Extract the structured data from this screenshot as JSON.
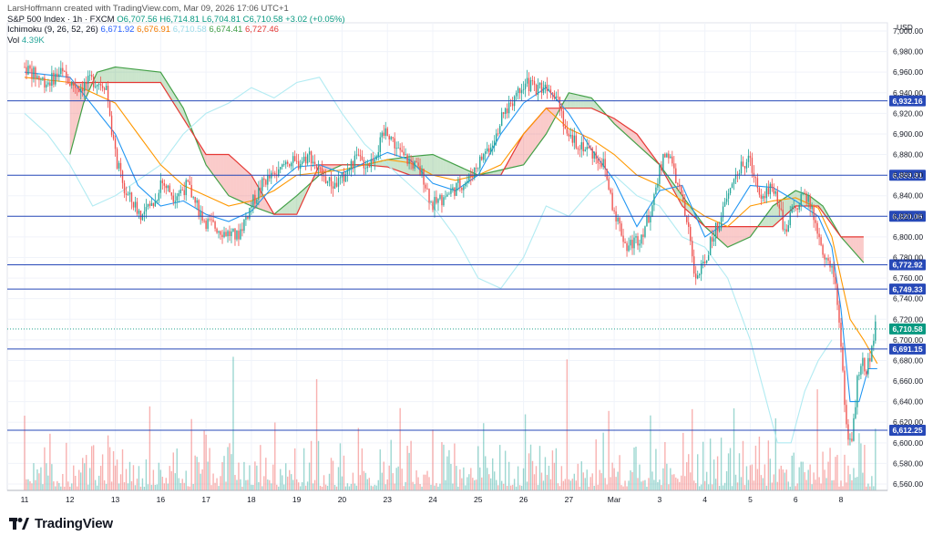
{
  "header": {
    "author_line": "LarsHoffmann created with TradingView.com, Mar 09, 2026 17:06 UTC+1",
    "symbol_line": {
      "symbol": "S&P 500 Index · 1h · FXCM",
      "open": "O6,707.56",
      "high": "H6,714.81",
      "low": "L6,704.81",
      "close": "C6,710.58",
      "change": "+3.02 (+0.05%)"
    },
    "ichimoku_line": {
      "label": "Ichimoku (9, 26, 52, 26)",
      "v1": "6,671.92",
      "v2": "6,676.91",
      "v3": "6,710.58",
      "v4": "6,674.41",
      "v5": "6,727.46"
    },
    "volume_line": {
      "label": "Vol",
      "value": "4.39K"
    }
  },
  "currency": "USD",
  "footer": {
    "brand": "TradingView"
  },
  "colors": {
    "up": "#26a69a",
    "down": "#ef5350",
    "tenkan": "#2196f3",
    "kijun": "#ff9800",
    "chikou": "#b2ebf2",
    "span_a": "#43a047",
    "span_b": "#e53935",
    "level_line": "#2749b8",
    "last_price": "#089981",
    "grid": "#f0f3fa"
  },
  "chart_data": {
    "type": "candlestick",
    "title": "",
    "ylim": [
      6560,
      7000
    ],
    "y_ticks": [
      "6,560.00",
      "6,580.00",
      "6,600.00",
      "6,620.00",
      "6,640.00",
      "6,660.00",
      "6,680.00",
      "6,700.00",
      "6,720.00",
      "6,740.00",
      "6,760.00",
      "6,780.00",
      "6,800.00",
      "6,820.00",
      "6,840.00",
      "6,860.00",
      "6,880.00",
      "6,900.00",
      "6,920.00",
      "6,940.00",
      "6,960.00",
      "6,980.00",
      "7,000.00"
    ],
    "x_ticks": [
      "11",
      "12",
      "13",
      "16",
      "17",
      "18",
      "19",
      "20",
      "23",
      "24",
      "25",
      "26",
      "27",
      "Mar",
      "3",
      "4",
      "5",
      "6",
      "8"
    ],
    "last_price": {
      "value": 6710.58,
      "label": "6,710.58"
    },
    "horizontal_levels": [
      {
        "value": 6932.16,
        "label": "6,932.16"
      },
      {
        "value": 6859.91,
        "label": "6,859.91"
      },
      {
        "value": 6820.06,
        "label": "6,820.06"
      },
      {
        "value": 6772.92,
        "label": "6,772.92"
      },
      {
        "value": 6749.33,
        "label": "6,749.33"
      },
      {
        "value": 6691.15,
        "label": "6,691.15"
      },
      {
        "value": 6612.25,
        "label": "6,612.25"
      }
    ],
    "price_path": [
      [
        0,
        6965
      ],
      [
        0.3,
        6955
      ],
      [
        0.5,
        6950
      ],
      [
        0.8,
        6960
      ],
      [
        1.0,
        6950
      ],
      [
        1.2,
        6945
      ],
      [
        1.5,
        6952
      ],
      [
        1.8,
        6948
      ],
      [
        2.0,
        6880
      ],
      [
        2.2,
        6845
      ],
      [
        2.6,
        6820
      ],
      [
        2.9,
        6835
      ],
      [
        3.0,
        6855
      ],
      [
        3.3,
        6840
      ],
      [
        3.6,
        6850
      ],
      [
        3.8,
        6830
      ],
      [
        4.0,
        6815
      ],
      [
        4.4,
        6805
      ],
      [
        4.7,
        6800
      ],
      [
        5.0,
        6830
      ],
      [
        5.3,
        6855
      ],
      [
        5.6,
        6860
      ],
      [
        5.8,
        6875
      ],
      [
        6.0,
        6870
      ],
      [
        6.3,
        6880
      ],
      [
        6.6,
        6858
      ],
      [
        6.8,
        6850
      ],
      [
        7.0,
        6855
      ],
      [
        7.3,
        6875
      ],
      [
        7.6,
        6870
      ],
      [
        7.8,
        6885
      ],
      [
        8.0,
        6905
      ],
      [
        8.3,
        6880
      ],
      [
        8.6,
        6870
      ],
      [
        8.8,
        6860
      ],
      [
        9.0,
        6830
      ],
      [
        9.3,
        6840
      ],
      [
        9.6,
        6850
      ],
      [
        9.8,
        6855
      ],
      [
        10.0,
        6870
      ],
      [
        10.3,
        6890
      ],
      [
        10.6,
        6920
      ],
      [
        10.8,
        6935
      ],
      [
        11.0,
        6950
      ],
      [
        11.3,
        6945
      ],
      [
        11.6,
        6948
      ],
      [
        11.8,
        6935
      ],
      [
        12.0,
        6895
      ],
      [
        12.3,
        6890
      ],
      [
        12.6,
        6880
      ],
      [
        12.8,
        6870
      ],
      [
        13.0,
        6830
      ],
      [
        13.3,
        6790
      ],
      [
        13.6,
        6800
      ],
      [
        13.8,
        6820
      ],
      [
        14.0,
        6860
      ],
      [
        14.2,
        6885
      ],
      [
        14.5,
        6840
      ],
      [
        14.7,
        6800
      ],
      [
        14.8,
        6760
      ],
      [
        15.0,
        6770
      ],
      [
        15.2,
        6800
      ],
      [
        15.4,
        6820
      ],
      [
        15.7,
        6860
      ],
      [
        16.0,
        6875
      ],
      [
        16.3,
        6840
      ],
      [
        16.5,
        6850
      ],
      [
        16.7,
        6830
      ],
      [
        16.8,
        6800
      ],
      [
        17.0,
        6830
      ],
      [
        17.3,
        6840
      ],
      [
        17.5,
        6810
      ],
      [
        17.7,
        6780
      ],
      [
        17.9,
        6760
      ],
      [
        18.0,
        6720
      ],
      [
        18.1,
        6650
      ],
      [
        18.2,
        6600
      ],
      [
        18.3,
        6610
      ],
      [
        18.4,
        6660
      ],
      [
        18.5,
        6680
      ],
      [
        18.6,
        6670
      ],
      [
        18.7,
        6690
      ],
      [
        18.8,
        6711
      ]
    ],
    "tenkan_path": [
      [
        0,
        6960
      ],
      [
        1.0,
        6955
      ],
      [
        2.0,
        6900
      ],
      [
        2.5,
        6850
      ],
      [
        3.0,
        6830
      ],
      [
        3.5,
        6835
      ],
      [
        4.0,
        6822
      ],
      [
        4.5,
        6815
      ],
      [
        5.0,
        6825
      ],
      [
        5.5,
        6850
      ],
      [
        6.0,
        6868
      ],
      [
        6.5,
        6870
      ],
      [
        7.0,
        6862
      ],
      [
        7.5,
        6872
      ],
      [
        8.0,
        6882
      ],
      [
        8.5,
        6875
      ],
      [
        9.0,
        6852
      ],
      [
        9.5,
        6845
      ],
      [
        10.0,
        6860
      ],
      [
        10.5,
        6900
      ],
      [
        11.0,
        6930
      ],
      [
        11.5,
        6945
      ],
      [
        12.0,
        6920
      ],
      [
        12.5,
        6885
      ],
      [
        13.0,
        6855
      ],
      [
        13.5,
        6810
      ],
      [
        14.0,
        6845
      ],
      [
        14.5,
        6850
      ],
      [
        15.0,
        6800
      ],
      [
        15.5,
        6815
      ],
      [
        16.0,
        6850
      ],
      [
        16.5,
        6848
      ],
      [
        17.0,
        6835
      ],
      [
        17.5,
        6820
      ],
      [
        17.8,
        6790
      ],
      [
        18.0,
        6730
      ],
      [
        18.2,
        6640
      ],
      [
        18.4,
        6640
      ],
      [
        18.6,
        6672
      ],
      [
        18.8,
        6672
      ]
    ],
    "kijun_path": [
      [
        0,
        6955
      ],
      [
        1.0,
        6950
      ],
      [
        2.0,
        6930
      ],
      [
        2.5,
        6900
      ],
      [
        3.0,
        6870
      ],
      [
        3.5,
        6850
      ],
      [
        4.0,
        6840
      ],
      [
        4.5,
        6830
      ],
      [
        5.0,
        6835
      ],
      [
        5.5,
        6845
      ],
      [
        6.0,
        6860
      ],
      [
        7.0,
        6865
      ],
      [
        8.0,
        6875
      ],
      [
        8.5,
        6872
      ],
      [
        9.0,
        6860
      ],
      [
        9.5,
        6855
      ],
      [
        10.0,
        6860
      ],
      [
        10.5,
        6870
      ],
      [
        11.0,
        6900
      ],
      [
        11.5,
        6925
      ],
      [
        12.0,
        6905
      ],
      [
        12.5,
        6895
      ],
      [
        13.0,
        6880
      ],
      [
        13.5,
        6860
      ],
      [
        14.0,
        6850
      ],
      [
        14.5,
        6835
      ],
      [
        15.0,
        6820
      ],
      [
        15.5,
        6810
      ],
      [
        16.0,
        6830
      ],
      [
        16.5,
        6835
      ],
      [
        17.0,
        6838
      ],
      [
        17.5,
        6828
      ],
      [
        17.8,
        6800
      ],
      [
        18.0,
        6760
      ],
      [
        18.2,
        6720
      ],
      [
        18.5,
        6700
      ],
      [
        18.8,
        6677
      ]
    ],
    "chikou_path": [
      [
        0,
        6920
      ],
      [
        0.5,
        6900
      ],
      [
        1.0,
        6870
      ],
      [
        1.5,
        6830
      ],
      [
        2.0,
        6840
      ],
      [
        2.5,
        6855
      ],
      [
        3.0,
        6870
      ],
      [
        3.5,
        6900
      ],
      [
        4.0,
        6920
      ],
      [
        4.5,
        6930
      ],
      [
        5.0,
        6945
      ],
      [
        5.5,
        6935
      ],
      [
        6.0,
        6950
      ],
      [
        6.5,
        6955
      ],
      [
        7.0,
        6920
      ],
      [
        7.5,
        6890
      ],
      [
        8.0,
        6870
      ],
      [
        8.5,
        6850
      ],
      [
        9.0,
        6830
      ],
      [
        9.5,
        6800
      ],
      [
        10.0,
        6760
      ],
      [
        10.5,
        6750
      ],
      [
        11.0,
        6780
      ],
      [
        11.5,
        6830
      ],
      [
        12.0,
        6820
      ],
      [
        12.5,
        6845
      ],
      [
        13.0,
        6860
      ],
      [
        13.5,
        6840
      ],
      [
        14.0,
        6830
      ],
      [
        14.5,
        6800
      ],
      [
        15.0,
        6790
      ],
      [
        15.5,
        6760
      ],
      [
        16.0,
        6700
      ],
      [
        16.3,
        6650
      ],
      [
        16.6,
        6600
      ],
      [
        16.9,
        6600
      ],
      [
        17.2,
        6650
      ],
      [
        17.5,
        6680
      ],
      [
        17.8,
        6700
      ]
    ],
    "span_a_path": [
      [
        1.0,
        6880
      ],
      [
        1.3,
        6930
      ],
      [
        1.6,
        6960
      ],
      [
        2.0,
        6965
      ],
      [
        3.0,
        6960
      ],
      [
        3.5,
        6925
      ],
      [
        4.0,
        6870
      ],
      [
        4.5,
        6840
      ],
      [
        5.0,
        6830
      ],
      [
        5.5,
        6822
      ],
      [
        6.0,
        6840
      ],
      [
        6.5,
        6860
      ],
      [
        7.0,
        6870
      ],
      [
        7.5,
        6870
      ],
      [
        8.0,
        6875
      ],
      [
        8.5,
        6878
      ],
      [
        9.0,
        6880
      ],
      [
        9.5,
        6870
      ],
      [
        10.0,
        6860
      ],
      [
        10.5,
        6865
      ],
      [
        11.0,
        6870
      ],
      [
        11.5,
        6900
      ],
      [
        12.0,
        6940
      ],
      [
        12.5,
        6935
      ],
      [
        13.0,
        6910
      ],
      [
        13.5,
        6890
      ],
      [
        14.0,
        6870
      ],
      [
        14.5,
        6840
      ],
      [
        15.0,
        6810
      ],
      [
        15.5,
        6790
      ],
      [
        16.0,
        6800
      ],
      [
        16.5,
        6830
      ],
      [
        17.0,
        6845
      ],
      [
        17.3,
        6840
      ],
      [
        17.6,
        6830
      ],
      [
        18.0,
        6800
      ],
      [
        18.5,
        6775
      ]
    ],
    "span_b_path": [
      [
        1.0,
        6950
      ],
      [
        1.5,
        6950
      ],
      [
        2.0,
        6950
      ],
      [
        3.0,
        6950
      ],
      [
        3.5,
        6915
      ],
      [
        4.0,
        6880
      ],
      [
        4.5,
        6880
      ],
      [
        5.0,
        6860
      ],
      [
        5.5,
        6822
      ],
      [
        6.0,
        6822
      ],
      [
        6.5,
        6870
      ],
      [
        7.0,
        6870
      ],
      [
        7.5,
        6870
      ],
      [
        8.0,
        6868
      ],
      [
        8.5,
        6860
      ],
      [
        9.0,
        6860
      ],
      [
        9.5,
        6860
      ],
      [
        10.0,
        6860
      ],
      [
        10.5,
        6860
      ],
      [
        11.0,
        6900
      ],
      [
        11.5,
        6925
      ],
      [
        12.0,
        6925
      ],
      [
        12.5,
        6925
      ],
      [
        13.0,
        6915
      ],
      [
        13.5,
        6900
      ],
      [
        14.0,
        6870
      ],
      [
        14.5,
        6830
      ],
      [
        15.0,
        6810
      ],
      [
        15.5,
        6810
      ],
      [
        16.0,
        6810
      ],
      [
        16.5,
        6810
      ],
      [
        17.0,
        6830
      ],
      [
        17.5,
        6830
      ],
      [
        18.0,
        6800
      ],
      [
        18.5,
        6800
      ]
    ]
  }
}
